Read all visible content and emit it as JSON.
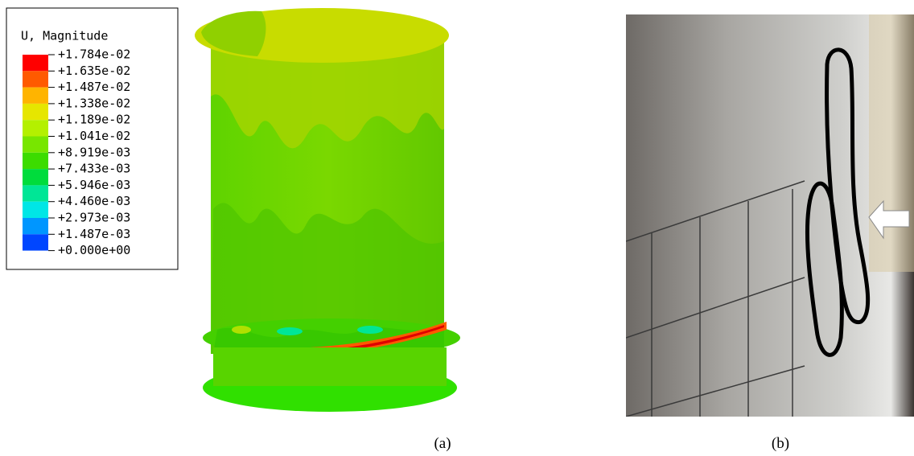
{
  "legend": {
    "title": "U, Magnitude",
    "labels": [
      "+1.784e-02",
      "+1.635e-02",
      "+1.487e-02",
      "+1.338e-02",
      "+1.189e-02",
      "+1.041e-02",
      "+8.919e-03",
      "+7.433e-03",
      "+5.946e-03",
      "+4.460e-03",
      "+2.973e-03",
      "+1.487e-03",
      "+0.000e+00"
    ],
    "colors": [
      "#ff0000",
      "#ff5a00",
      "#ffb400",
      "#e6e600",
      "#b4f000",
      "#78e600",
      "#3cdc00",
      "#00dc3c",
      "#00e696",
      "#00e6e6",
      "#0096ff",
      "#0046ff",
      "#0000ff"
    ]
  },
  "captions": [
    "(a)",
    "(b)"
  ]
}
